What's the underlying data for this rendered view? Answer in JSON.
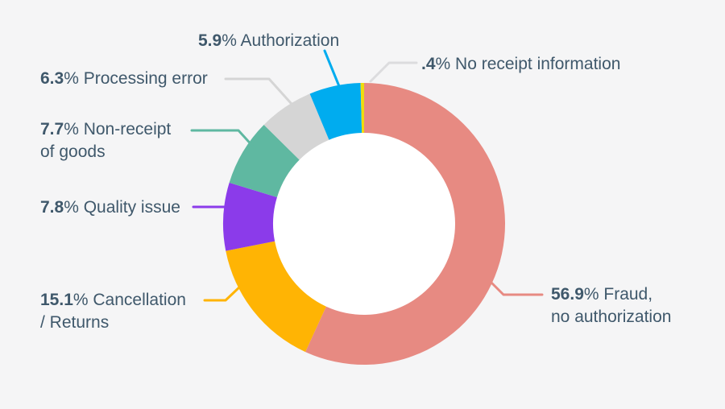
{
  "colors": {
    "background": "#F5F5F6",
    "text": "#3F586B",
    "hole": "#FFFFFF",
    "leader_gray": "#DCDCDE"
  },
  "chart_data": {
    "type": "pie",
    "donut": true,
    "title": "",
    "legend_position": "callout-labels",
    "start_angle_deg": 0,
    "direction": "clockwise",
    "segments": [
      {
        "label": "Fraud, no authorization",
        "value": 56.9,
        "color": "#E78A82"
      },
      {
        "label": "Cancellation / Returns",
        "value": 15.1,
        "color": "#FFB404"
      },
      {
        "label": "Quality issue",
        "value": 7.8,
        "color": "#8B3BEA"
      },
      {
        "label": "Non-receipt of goods",
        "value": 7.7,
        "color": "#5FB8A1"
      },
      {
        "label": "Processing error",
        "value": 6.3,
        "color": "#D5D5D5"
      },
      {
        "label": "Authorization",
        "value": 5.9,
        "color": "#00ACEF"
      },
      {
        "label": "No receipt information",
        "value": 0.4,
        "color": "#EFDC0D"
      }
    ]
  },
  "callouts": {
    "authorization": {
      "num": "5.9",
      "rest": "% Authorization"
    },
    "processing_error": {
      "num": "6.3",
      "rest": "% Processing error"
    },
    "non_receipt": {
      "num": "7.7",
      "rest": "% Non-receipt",
      "line2": "of goods"
    },
    "quality_issue": {
      "num": "7.8",
      "rest": "% Quality issue"
    },
    "cancellation": {
      "num": "15.1",
      "rest": "% Cancellation",
      "line2": "/ Returns"
    },
    "fraud": {
      "num": "56.9",
      "rest": "% Fraud,",
      "line2": "no authorization"
    },
    "no_receipt_information": {
      "num": ".4",
      "rest": "% No receipt information"
    }
  }
}
